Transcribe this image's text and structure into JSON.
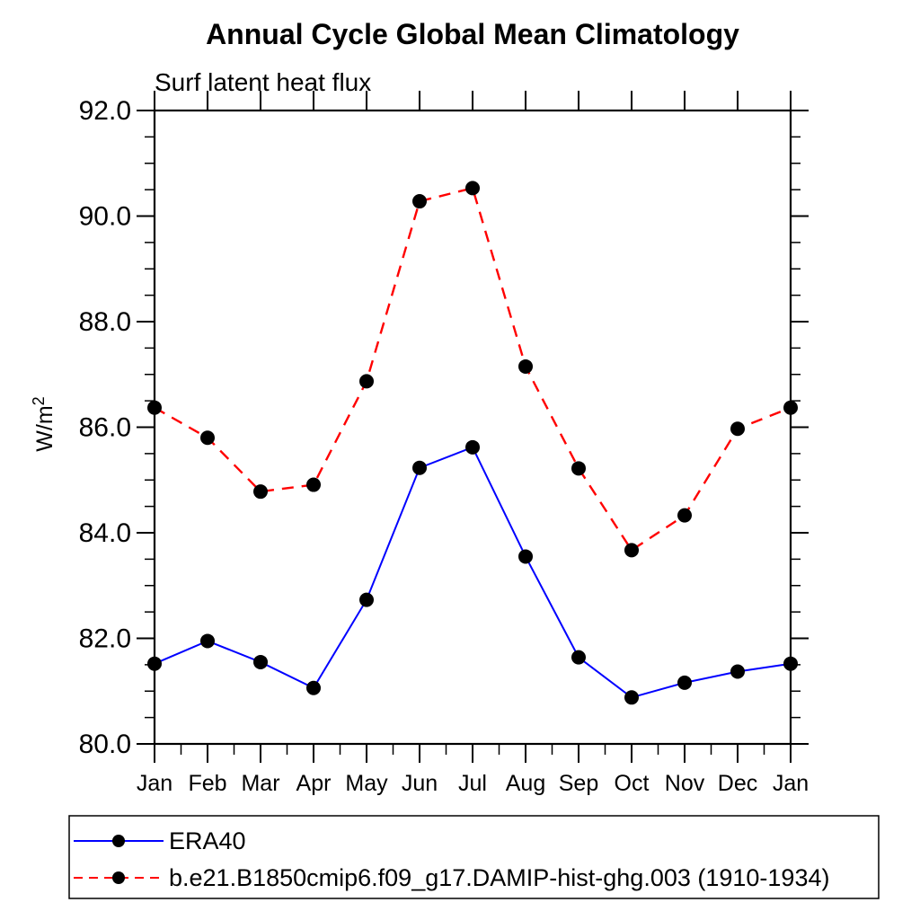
{
  "page": {
    "background": "#ffffff"
  },
  "chart_data": {
    "type": "line",
    "title": "Annual Cycle Global Mean Climatology",
    "subtitle": "Surf latent heat flux",
    "ylabel": "W/m²",
    "xlabel": "",
    "categories": [
      "Jan",
      "Feb",
      "Mar",
      "Apr",
      "May",
      "Jun",
      "Jul",
      "Aug",
      "Sep",
      "Oct",
      "Nov",
      "Dec",
      "Jan"
    ],
    "series": [
      {
        "name": "ERA40",
        "color": "#0000ff",
        "dashed": false,
        "marker": "black-dot",
        "values": [
          81.52,
          81.95,
          81.55,
          81.06,
          82.73,
          85.23,
          85.62,
          83.55,
          81.64,
          80.88,
          81.16,
          81.37,
          81.52
        ]
      },
      {
        "name": "b.e21.B1850cmip6.f09_g17.DAMIP-hist-ghg.003 (1910-1934)",
        "color": "#ff0000",
        "dashed": true,
        "marker": "black-dot",
        "values": [
          86.37,
          85.8,
          84.78,
          84.91,
          86.87,
          90.28,
          90.53,
          87.15,
          85.22,
          83.67,
          84.33,
          85.97,
          86.37
        ]
      }
    ],
    "ylim": [
      80.0,
      92.0
    ],
    "ytick_step": 2.0,
    "yminor_step": 0.5,
    "ytick_labels": [
      "80.0",
      "82.0",
      "84.0",
      "86.0",
      "88.0",
      "90.0",
      "92.0"
    ],
    "marker_color": "#000000",
    "grid": false,
    "legend_position": "bottom"
  }
}
